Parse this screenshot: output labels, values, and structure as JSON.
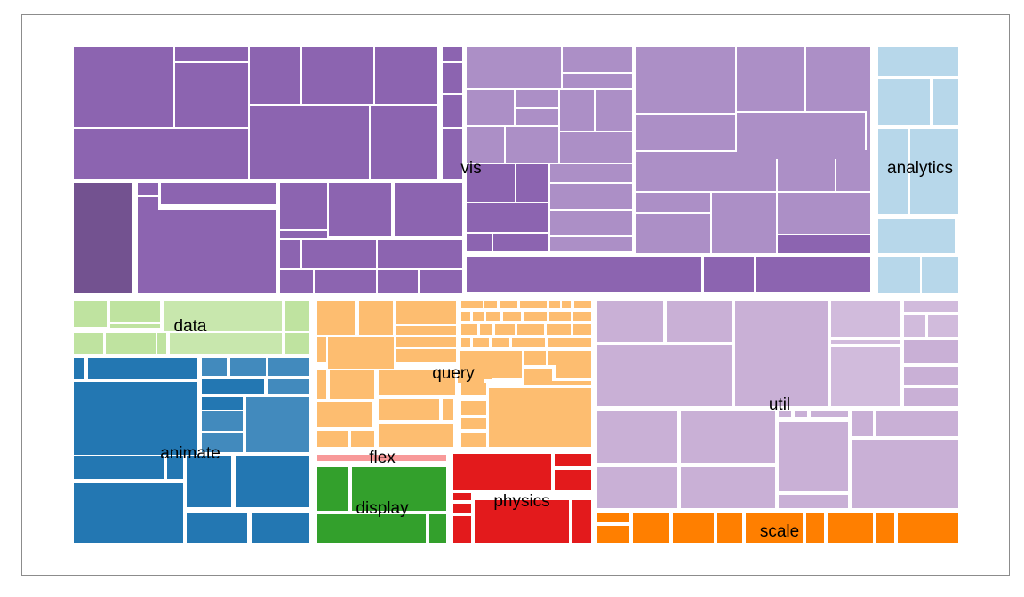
{
  "chart_data": {
    "type": "treemap",
    "title": "",
    "groups": [
      {
        "name": "vis",
        "label": "vis",
        "color": "#8c64b0",
        "weight": 47
      },
      {
        "name": "analytics",
        "label": "analytics",
        "color": "#b7d7ea",
        "weight": 4.7
      },
      {
        "name": "data",
        "label": "data",
        "color": "#bfe3a0",
        "weight": 4.3
      },
      {
        "name": "animate",
        "label": "animate",
        "color": "#2377b2",
        "weight": 10.9
      },
      {
        "name": "query",
        "label": "query",
        "color": "#fdbd70",
        "weight": 9.1
      },
      {
        "name": "flex",
        "label": "flex",
        "color": "#f89999",
        "weight": 0.4
      },
      {
        "name": "display",
        "label": "display",
        "color": "#33a02c",
        "weight": 3.2
      },
      {
        "name": "physics",
        "label": "physics",
        "color": "#e31a1c",
        "weight": 4.1
      },
      {
        "name": "util",
        "label": "util",
        "color": "#c9b0d6",
        "weight": 18.7
      },
      {
        "name": "scale",
        "label": "scale",
        "color": "#ff7f00",
        "weight": 2.8
      }
    ]
  }
}
